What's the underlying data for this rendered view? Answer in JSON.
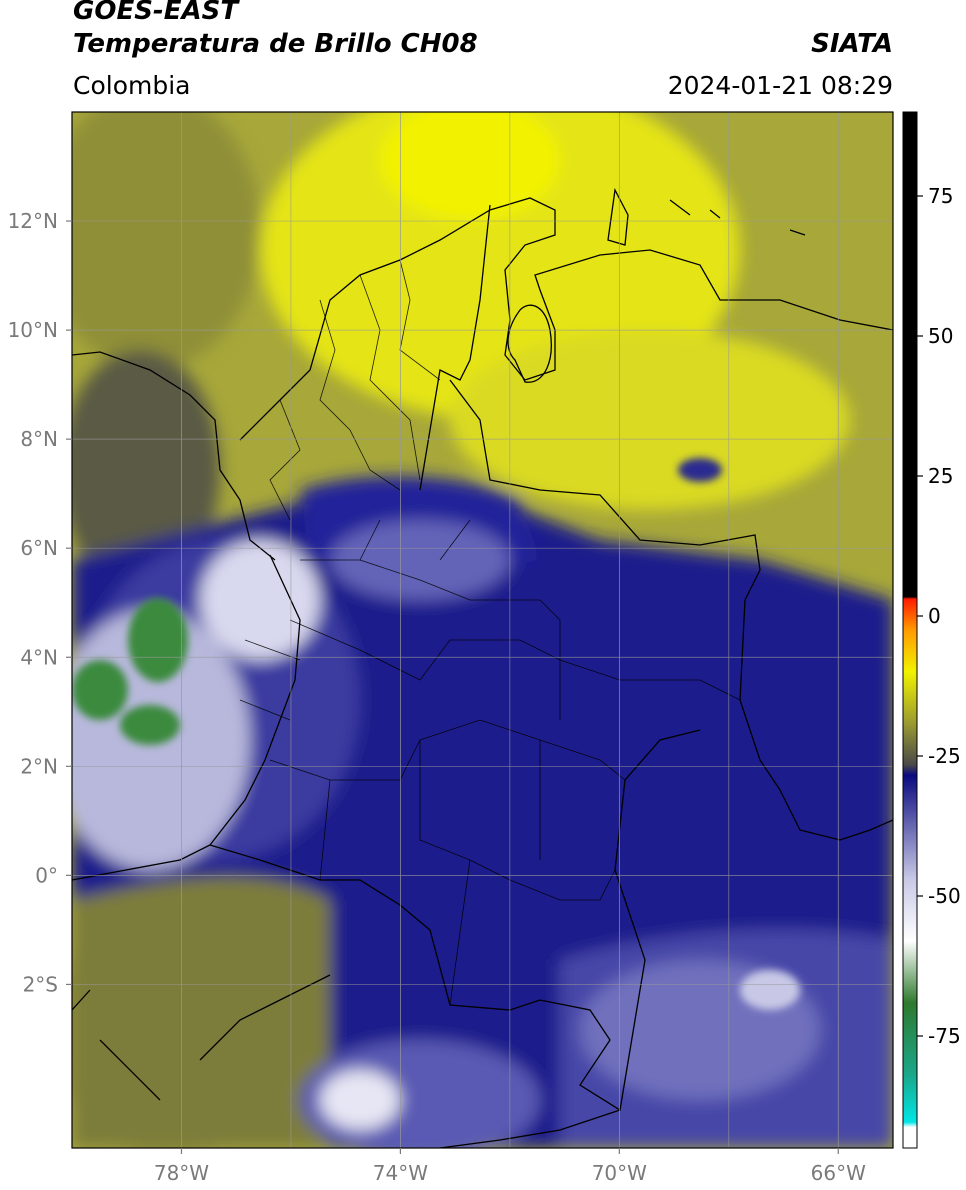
{
  "header": {
    "satellite": "GOES-EAST",
    "product": "Temperatura de Brillo CH08",
    "region": "Colombia",
    "source": "SIATA",
    "datetime": "2024-01-21 08:29"
  },
  "map": {
    "lon_range": [
      -80,
      -65
    ],
    "lat_range": [
      -5,
      14
    ],
    "lon_ticks": [
      {
        "value": -78,
        "label": "78°W"
      },
      {
        "value": -74,
        "label": "74°W"
      },
      {
        "value": -70,
        "label": "70°W"
      },
      {
        "value": -66,
        "label": "66°W"
      }
    ],
    "lat_ticks": [
      {
        "value": 12,
        "label": "12°N"
      },
      {
        "value": 10,
        "label": "10°N"
      },
      {
        "value": 8,
        "label": "8°N"
      },
      {
        "value": 6,
        "label": "6°N"
      },
      {
        "value": 4,
        "label": "4°N"
      },
      {
        "value": 2,
        "label": "2°N"
      },
      {
        "value": 0,
        "label": "0°"
      },
      {
        "value": -2,
        "label": "2°S"
      }
    ],
    "gridlines": true
  },
  "colorbar": {
    "range": [
      -95,
      90
    ],
    "ticks": [
      {
        "value": 75,
        "label": "75"
      },
      {
        "value": 50,
        "label": "50"
      },
      {
        "value": 25,
        "label": "25"
      },
      {
        "value": 0,
        "label": "0"
      },
      {
        "value": -25,
        "label": "-25"
      },
      {
        "value": -50,
        "label": "-50"
      },
      {
        "value": -75,
        "label": "-75"
      }
    ],
    "colors": {
      "black": "#000000",
      "red": "#ff1a00",
      "orange": "#ff9a00",
      "yellow": "#f2f200",
      "olive": "#9a9a30",
      "dark_gray": "#4a4a4a",
      "navy": "#0a0a80",
      "lavender": "#c8c8e6",
      "white": "#ffffff",
      "green": "#2e7a2e",
      "teal": "#1aa88c",
      "cyan": "#00e6e6"
    }
  }
}
